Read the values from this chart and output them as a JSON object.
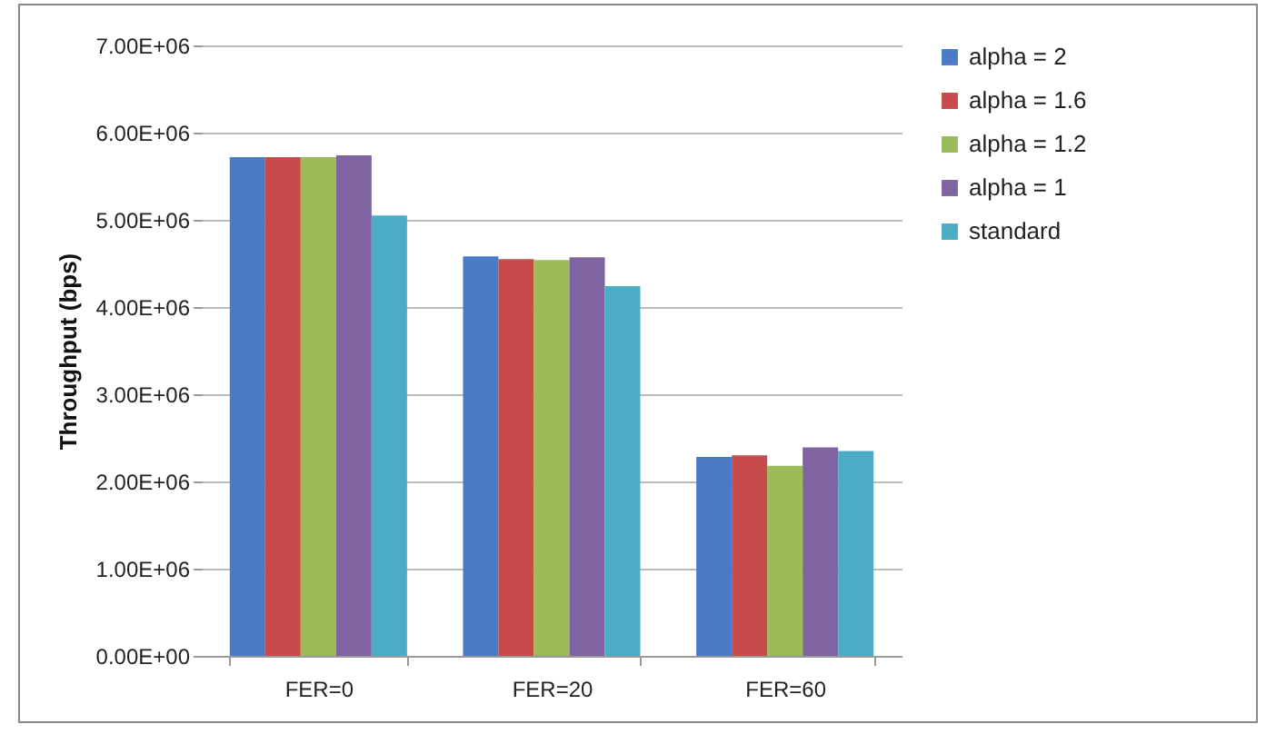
{
  "chart_data": {
    "type": "bar",
    "ylabel": "Throughput (bps)",
    "categories": [
      "FER=0",
      "FER=20",
      "FER=60"
    ],
    "series": [
      {
        "name": "alpha = 2",
        "color": "#4a7bc4",
        "values": [
          5720000,
          4580000,
          2280000
        ]
      },
      {
        "name": "alpha = 1.6",
        "color": "#c84b4b",
        "values": [
          5720000,
          4550000,
          2300000
        ]
      },
      {
        "name": "alpha = 1.2",
        "color": "#9bbb59",
        "values": [
          5720000,
          4540000,
          2180000
        ]
      },
      {
        "name": "alpha = 1",
        "color": "#8064a2",
        "values": [
          5740000,
          4570000,
          2390000
        ]
      },
      {
        "name": "standard",
        "color": "#4bacc6",
        "values": [
          5050000,
          4240000,
          2350000
        ]
      }
    ],
    "ylim": [
      0,
      7000000
    ],
    "yticks": [
      {
        "value": 0,
        "label": "0.00E+00"
      },
      {
        "value": 1000000,
        "label": "1.00E+06"
      },
      {
        "value": 2000000,
        "label": "2.00E+06"
      },
      {
        "value": 3000000,
        "label": "3.00E+06"
      },
      {
        "value": 4000000,
        "label": "4.00E+06"
      },
      {
        "value": 5000000,
        "label": "5.00E+06"
      },
      {
        "value": 6000000,
        "label": "6.00E+06"
      },
      {
        "value": 7000000,
        "label": "7.00E+06"
      }
    ],
    "grid": "y",
    "legend": "right"
  }
}
